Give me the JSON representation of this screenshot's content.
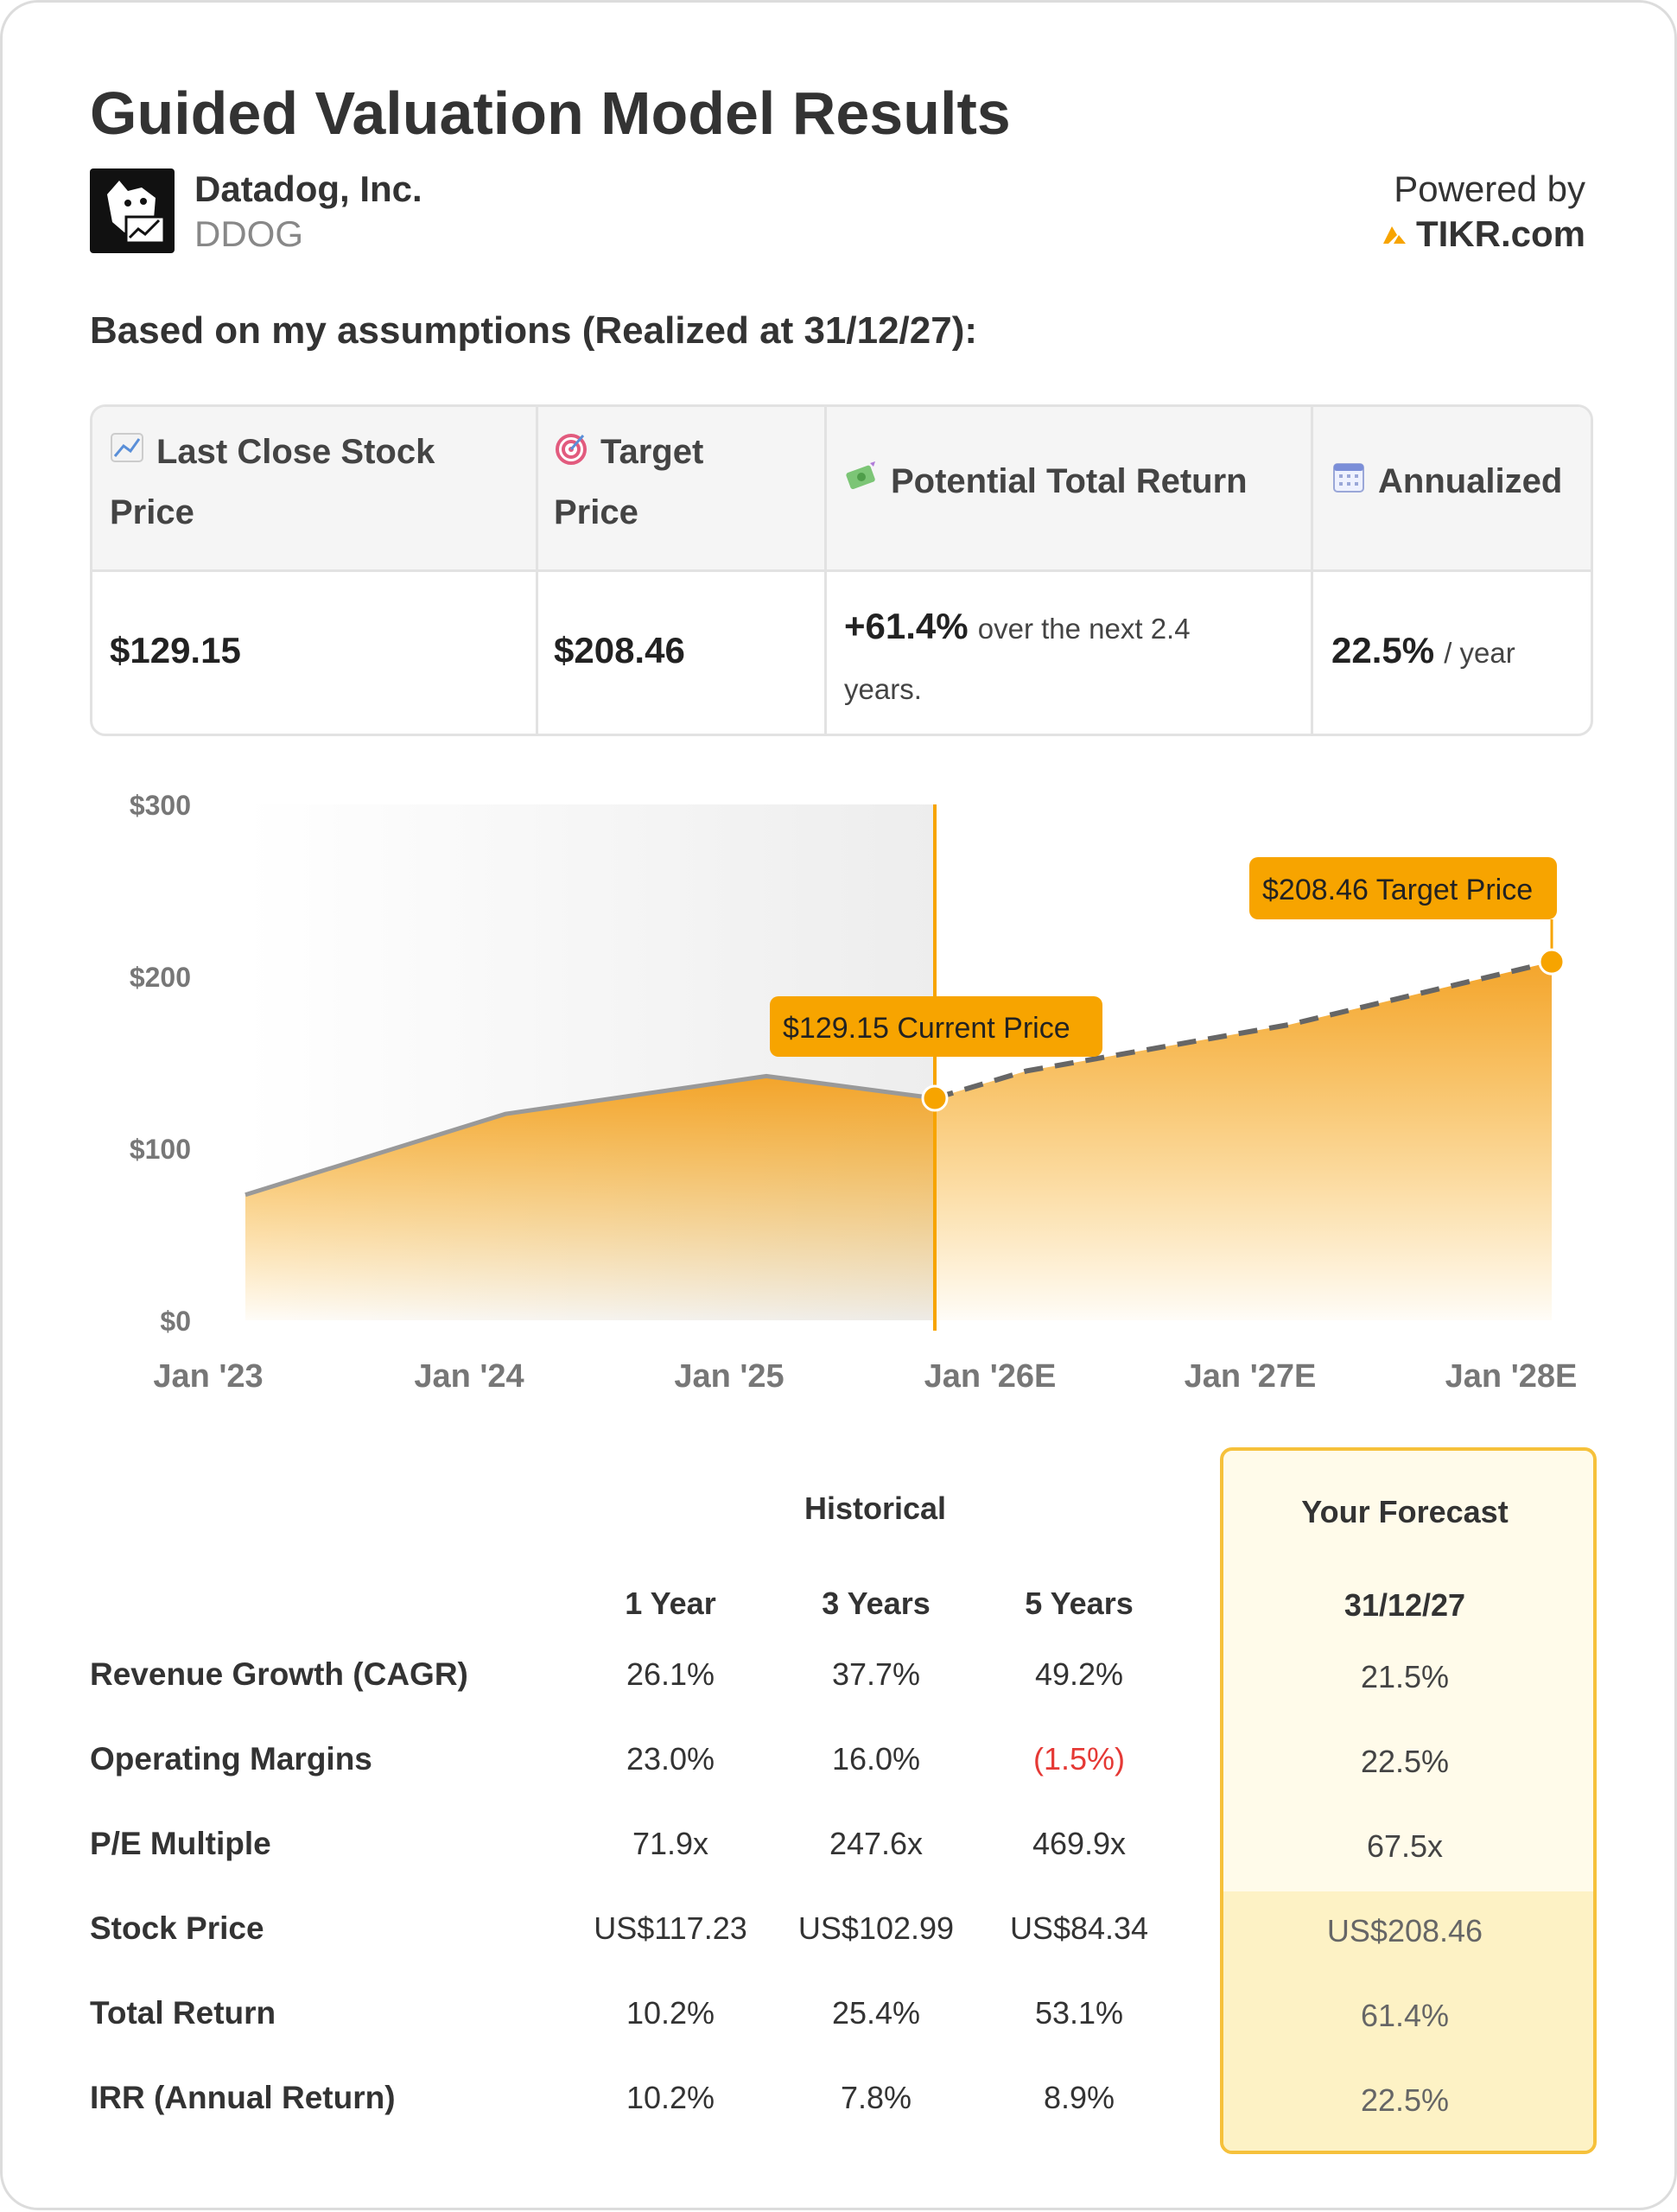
{
  "header": {
    "title": "Guided Valuation Model Results",
    "company": "Datadog, Inc.",
    "ticker": "DDOG",
    "powered_by": "Powered by",
    "brand": "TIKR.com",
    "logo_icon": "datadog-logo-icon"
  },
  "subtitle": "Based on my assumptions (Realized at 31/12/27):",
  "summary": {
    "headers": [
      {
        "line1": "Last Close Stock",
        "line2": "Price",
        "icon": "chart-icon"
      },
      {
        "line1": "Target",
        "line2": "Price",
        "icon": "target-icon"
      },
      {
        "line1": "Potential Total Return",
        "line2": "",
        "icon": "money-icon"
      },
      {
        "line1": "Annualized",
        "line2": "",
        "icon": "calendar-icon"
      }
    ],
    "last_close": "$129.15",
    "target": "$208.46",
    "total_return": "+61.4%",
    "total_return_suffix1": "over the next 2.4",
    "total_return_suffix2": "years.",
    "annualized": "22.5%",
    "annualized_suffix": "/ year"
  },
  "chart_data": {
    "type": "area",
    "y_ticks": [
      "$300",
      "$200",
      "$100",
      "$0"
    ],
    "x_ticks": [
      "Jan '23",
      "Jan '24",
      "Jan '25",
      "Jan '26E",
      "Jan '27E",
      "Jan '28E"
    ],
    "ylim": [
      0,
      300
    ],
    "historical": {
      "x": [
        "Jan '23",
        "Jan '24",
        "Jan '25",
        "Current"
      ],
      "values": [
        73,
        120,
        142,
        129.15
      ]
    },
    "forecast": {
      "x": [
        "Current",
        "Jan '26E",
        "Jan '27E",
        "Jan '28E"
      ],
      "values": [
        129.15,
        145,
        172,
        208.46
      ]
    },
    "current_label": "$129.15 Current Price",
    "target_label": "$208.46 Target Price",
    "accent_color": "#f7a400",
    "line_color": "#999999",
    "forecast_line_color": "#666666"
  },
  "table": {
    "historical_label": "Historical",
    "forecast_label": "Your Forecast",
    "columns": [
      "1 Year",
      "3 Years",
      "5 Years"
    ],
    "forecast_date": "31/12/27",
    "rows": [
      {
        "label": "Revenue Growth (CAGR)",
        "values": [
          "26.1%",
          "37.7%",
          "49.2%"
        ],
        "forecast": "21.5%"
      },
      {
        "label": "Operating Margins",
        "values": [
          "23.0%",
          "16.0%",
          "(1.5%)"
        ],
        "forecast": "22.5%"
      },
      {
        "label": "P/E Multiple",
        "values": [
          "71.9x",
          "247.6x",
          "469.9x"
        ],
        "forecast": "67.5x"
      },
      {
        "label": "Stock Price",
        "values": [
          "US$117.23",
          "US$102.99",
          "US$84.34"
        ],
        "forecast": "US$208.46"
      },
      {
        "label": "Total Return",
        "values": [
          "10.2%",
          "25.4%",
          "53.1%"
        ],
        "forecast": "61.4%"
      },
      {
        "label": "IRR (Annual Return)",
        "values": [
          "10.2%",
          "7.8%",
          "8.9%"
        ],
        "forecast": "22.5%"
      }
    ]
  }
}
